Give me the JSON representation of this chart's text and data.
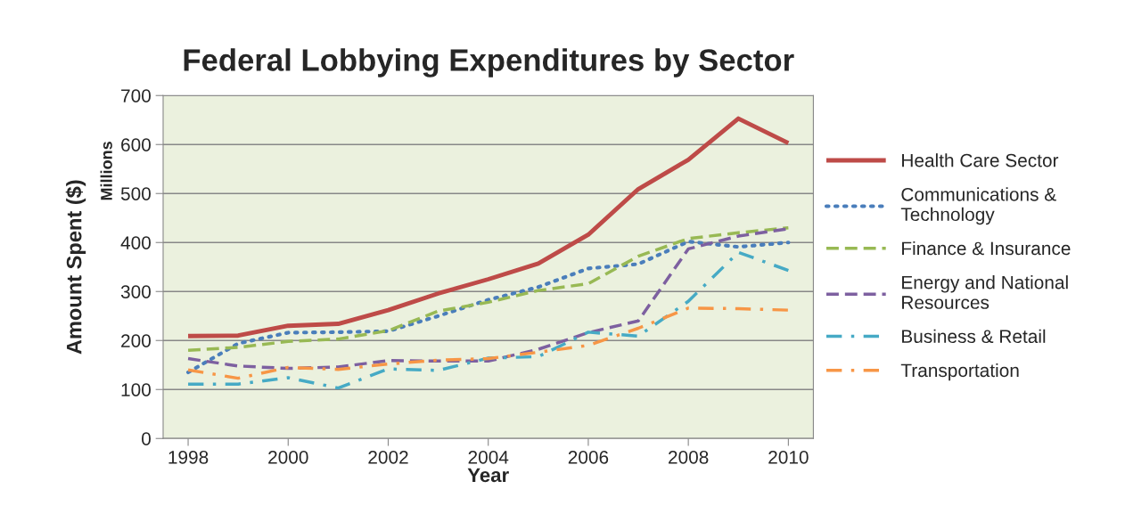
{
  "chart_data": {
    "type": "line",
    "title": "Federal Lobbying Expenditures by Sector",
    "xlabel": "Year",
    "ylabel": "Amount Spent ($)",
    "annotations": [
      "Millions"
    ],
    "x": [
      1998,
      1999,
      2000,
      2001,
      2002,
      2003,
      2004,
      2005,
      2006,
      2007,
      2008,
      2009,
      2010
    ],
    "series": [
      {
        "name": "Health Care Sector",
        "color": "#be4b48",
        "line_style": "solid",
        "values": [
          209,
          210,
          230,
          234,
          262,
          296,
          325,
          357,
          416,
          509,
          569,
          653,
          603
        ]
      },
      {
        "name": "Communications & Technology",
        "color": "#4a7ebb",
        "line_style": "dotted",
        "values": [
          135,
          194,
          216,
          217,
          219,
          250,
          283,
          309,
          347,
          356,
          402,
          391,
          400
        ]
      },
      {
        "name": "Finance & Insurance",
        "color": "#98b954",
        "line_style": "dashed",
        "values": [
          180,
          186,
          198,
          203,
          220,
          260,
          278,
          302,
          316,
          372,
          408,
          420,
          430
        ]
      },
      {
        "name": "Energy and National Resources",
        "color": "#7d60a0",
        "line_style": "dashed",
        "values": [
          163,
          148,
          143,
          146,
          159,
          158,
          158,
          182,
          216,
          240,
          387,
          413,
          428
        ]
      },
      {
        "name": "Business & Retail",
        "color": "#46aac5",
        "line_style": "dashdot",
        "values": [
          111,
          111,
          124,
          103,
          142,
          139,
          164,
          167,
          217,
          209,
          280,
          380,
          343
        ]
      },
      {
        "name": "Transportation",
        "color": "#f79646",
        "line_style": "dashdot",
        "values": [
          140,
          123,
          145,
          141,
          152,
          160,
          163,
          176,
          190,
          225,
          266,
          265,
          262
        ]
      }
    ],
    "xlim": [
      1997.5,
      2010.5
    ],
    "xticks": [
      1998,
      2000,
      2002,
      2004,
      2006,
      2008,
      2010
    ],
    "ylim": [
      0,
      700
    ],
    "yticks": [
      0,
      100,
      200,
      300,
      400,
      500,
      600,
      700
    ],
    "grid": "y",
    "legend": "right",
    "marker": "none"
  }
}
